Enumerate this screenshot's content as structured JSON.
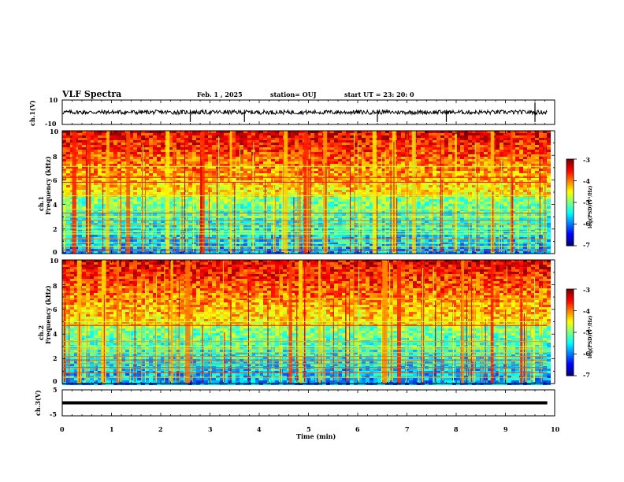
{
  "header": {
    "title": "VLF Spectra",
    "date": "Feb. 1 , 2025",
    "station": "station= OUJ",
    "start_ut": "start UT = 23: 20: 0"
  },
  "chart_data": [
    {
      "type": "line",
      "panel": "ch1-waveform",
      "ylabel": "ch.1(V)",
      "yticks": [
        "10",
        "-10"
      ],
      "ylim": [
        -10,
        10
      ],
      "series_color": "#000000",
      "baseline_v": 0,
      "spikes_min": [
        2.6,
        3.7,
        6.4,
        7.8,
        9.6
      ]
    },
    {
      "type": "heatmap",
      "panel": "ch1-spectrogram",
      "ylabel_line1": "ch.1",
      "ylabel_line2": "Frequency (kHz)",
      "yticks": [
        "0",
        "2",
        "4",
        "6",
        "8",
        "10"
      ],
      "ylim_khz": [
        0,
        10
      ],
      "xlim_min": [
        0,
        9.85
      ],
      "colorbar": {
        "label": "log(PSD)(V²/Hz)",
        "ticks": [
          "-3",
          "-4",
          "-5",
          "-6",
          "-7"
        ],
        "range": [
          -7,
          -3
        ]
      },
      "persistent_lines_khz": [
        7.1,
        6.2,
        5.8,
        4.7,
        3.6,
        3.3,
        3.0,
        2.7,
        2.4,
        2.1,
        1.8,
        1.6,
        1.2,
        0.9,
        0.6,
        0.3
      ],
      "bursts_min": [
        0.2,
        0.5,
        0.9,
        1.3,
        2.1,
        2.8,
        3.4,
        4.5,
        4.9,
        5.3,
        6.3,
        6.7,
        7.1,
        8.7,
        9.1
      ]
    },
    {
      "type": "heatmap",
      "panel": "ch2-spectrogram",
      "ylabel_line1": "ch.2",
      "ylabel_line2": "Frequency (kHz)",
      "yticks": [
        "0",
        "2",
        "4",
        "6",
        "8",
        "10"
      ],
      "ylim_khz": [
        0,
        10
      ],
      "xlim_min": [
        0,
        9.85
      ],
      "colorbar": {
        "label": "log(PSD)(V²/Hz)",
        "ticks": [
          "-3",
          "-4",
          "-5",
          "-6",
          "-7"
        ],
        "range": [
          -7,
          -3
        ]
      },
      "persistent_lines_khz": [
        6.9,
        5.0,
        4.7,
        3.4,
        3.0,
        2.8,
        2.5,
        2.2,
        1.9,
        1.6,
        1.3,
        0.9,
        0.5
      ],
      "bursts_min": [
        0.3,
        0.8,
        1.1,
        2.2,
        2.5,
        4.6,
        4.8,
        5.2,
        6.5,
        6.8,
        7.3,
        8.1,
        8.7,
        9.3
      ]
    },
    {
      "type": "line",
      "panel": "ch3-waveform",
      "ylabel": "ch.3(V)",
      "yticks": [
        "5",
        "-5"
      ],
      "ylim": [
        -5,
        5
      ],
      "series_color": "#000000",
      "level_v": 0
    }
  ],
  "xaxis": {
    "label": "Time (min)",
    "ticks": [
      "0",
      "1",
      "2",
      "3",
      "4",
      "5",
      "6",
      "7",
      "8",
      "9",
      "10"
    ],
    "range": [
      0,
      10
    ]
  }
}
